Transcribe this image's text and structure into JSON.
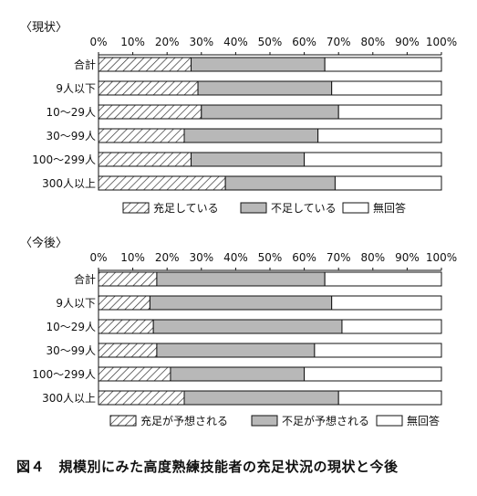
{
  "colors": {
    "satisfied": "#ffffff",
    "shortage": "#b8b8b8",
    "no_answer": "#ffffff",
    "hatch_line": "#333333",
    "ink": "#111111"
  },
  "chart_data": [
    {
      "type": "bar",
      "orientation": "horizontal",
      "stacked": true,
      "title": "〈現状〉",
      "xlim": [
        0,
        100
      ],
      "ticks": [
        "0%",
        "10%",
        "20%",
        "30%",
        "40%",
        "50%",
        "60%",
        "70%",
        "80%",
        "90%",
        "100%"
      ],
      "categories": [
        "合計",
        "9人以下",
        "10〜29人",
        "30〜99人",
        "100〜299人",
        "300人以上"
      ],
      "series": [
        {
          "name": "充足している",
          "pattern": "hatch",
          "values": [
            27,
            29,
            30,
            25,
            27,
            37
          ]
        },
        {
          "name": "不足している",
          "pattern": "gray",
          "values": [
            39,
            39,
            40,
            39,
            33,
            32
          ]
        },
        {
          "name": "無回答",
          "pattern": "white",
          "values": [
            34,
            32,
            30,
            36,
            40,
            31
          ]
        }
      ],
      "legend_position": "bottom"
    },
    {
      "type": "bar",
      "orientation": "horizontal",
      "stacked": true,
      "title": "〈今後〉",
      "xlim": [
        0,
        100
      ],
      "ticks": [
        "0%",
        "10%",
        "20%",
        "30%",
        "40%",
        "50%",
        "60%",
        "70%",
        "80%",
        "90%",
        "100%"
      ],
      "categories": [
        "合計",
        "9人以下",
        "10〜29人",
        "30〜99人",
        "100〜299人",
        "300人以上"
      ],
      "series": [
        {
          "name": "充足が予想される",
          "pattern": "hatch",
          "values": [
            17,
            15,
            16,
            17,
            21,
            25
          ]
        },
        {
          "name": "不足が予想される",
          "pattern": "gray",
          "values": [
            49,
            53,
            55,
            46,
            39,
            45
          ]
        },
        {
          "name": "無回答",
          "pattern": "white",
          "values": [
            34,
            32,
            29,
            37,
            40,
            30
          ]
        }
      ],
      "legend_position": "bottom"
    }
  ],
  "caption": "図４　規模別にみた高度熟練技能者の充足状況の現状と今後"
}
